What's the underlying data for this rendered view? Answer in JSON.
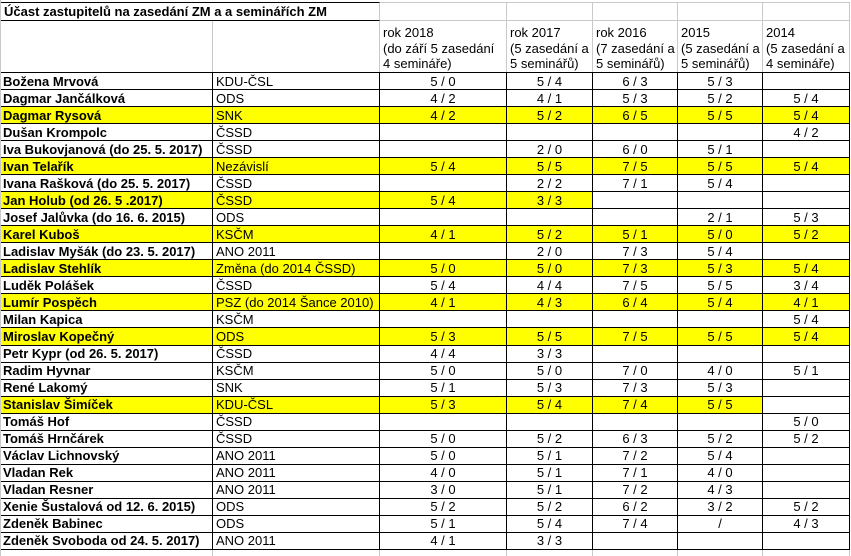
{
  "title": "Účast zastupitelů na zasedání ZM a a seminářích ZM",
  "columns": [
    {
      "label": "rok 2018\n(do září 5 zasedání\n4 semináře)"
    },
    {
      "label": "rok 2017\n(5 zasedání a\n5 seminářů)"
    },
    {
      "label": "rok 2016\n(7 zasedání a\n5 seminářů)"
    },
    {
      "label": "2015\n(5 zasedání a\n5 seminářů)"
    },
    {
      "label": "2014\n(5 zasedání a\n4 semináře)"
    }
  ],
  "rows": [
    {
      "name": "Božena Mrvová",
      "party": "KDU-ČSL",
      "values": [
        "5 / 0",
        "5 / 4",
        "6 / 3",
        "5 / 3",
        ""
      ],
      "highlight_cells": 0
    },
    {
      "name": "Dagmar Jančálková",
      "party": "ODS",
      "values": [
        "4 / 2",
        "4 / 1",
        "5 / 3",
        "5 / 2",
        "5 / 4"
      ],
      "highlight_cells": 0
    },
    {
      "name": "Dagmar Rysová",
      "party": "SNK",
      "values": [
        "4 / 2",
        "5 / 2",
        "6 / 5",
        "5 / 5",
        "5 / 4"
      ],
      "highlight_cells": 7
    },
    {
      "name": "Dušan Krompolc",
      "party": "ČSSD",
      "values": [
        "",
        "",
        "",
        "",
        "4 / 2"
      ],
      "highlight_cells": 0
    },
    {
      "name": "Iva Bukovjanová (do 25. 5. 2017)",
      "party": "ČSSD",
      "values": [
        "",
        "2 / 0",
        "6 / 0",
        "5 / 1",
        ""
      ],
      "highlight_cells": 0
    },
    {
      "name": "Ivan Telařík",
      "party": "Nezávislí",
      "values": [
        "5 / 4",
        "5 / 5",
        "7 / 5",
        "5 / 5",
        "5 / 4"
      ],
      "highlight_cells": 7
    },
    {
      "name": "Ivana Rašková (do 25. 5. 2017)",
      "party": "ČSSD",
      "values": [
        "",
        "2 / 2",
        "7 / 1",
        "5 / 4",
        ""
      ],
      "highlight_cells": 0
    },
    {
      "name": "Jan Holub (od 26. 5 .2017)",
      "party": "ČSSD",
      "values": [
        "5 / 4",
        "3 / 3",
        "",
        "",
        ""
      ],
      "highlight_cells": 4
    },
    {
      "name": "Josef Jalůvka (do 16. 6. 2015)",
      "party": "ODS",
      "values": [
        "",
        "",
        "",
        "2 / 1",
        "5 / 3"
      ],
      "highlight_cells": 0
    },
    {
      "name": "Karel Kuboš",
      "party": "KSČM",
      "values": [
        "4 / 1",
        "5 / 2",
        "5 / 1",
        "5 / 0",
        "5 / 2"
      ],
      "highlight_cells": 7
    },
    {
      "name": "Ladislav Myšák (do 23. 5. 2017)",
      "party": "ANO 2011",
      "values": [
        "",
        "2 / 0",
        "7 / 3",
        "5 / 4",
        ""
      ],
      "highlight_cells": 0
    },
    {
      "name": "Ladislav Stehlík",
      "party": "Změna (do 2014 ČSSD)",
      "values": [
        "5 / 0",
        "5 / 0",
        "7 / 3",
        "5 / 3",
        "5 / 4"
      ],
      "highlight_cells": 7
    },
    {
      "name": "Luděk Polášek",
      "party": "ČSSD",
      "values": [
        "5 / 4",
        "4 / 4",
        "7 / 5",
        "5 / 5",
        "3 / 4"
      ],
      "highlight_cells": 0
    },
    {
      "name": "Lumír Pospěch",
      "party": "PSZ (do 2014 Šance 2010)",
      "values": [
        "4 / 1",
        "4 / 3",
        "6 / 4",
        "5 / 4",
        "4 / 1"
      ],
      "highlight_cells": 7
    },
    {
      "name": "Milan Kapica",
      "party": "KSČM",
      "values": [
        "",
        "",
        "",
        "",
        "5 / 4"
      ],
      "highlight_cells": 0
    },
    {
      "name": "Miroslav Kopečný",
      "party": "ODS",
      "values": [
        "5 / 3",
        "5 / 5",
        "7 / 5",
        "5 / 5",
        "5 / 4"
      ],
      "highlight_cells": 7
    },
    {
      "name": "Petr Kypr (od 26. 5. 2017)",
      "party": "ČSSD",
      "values": [
        "4 / 4",
        "3 / 3",
        "",
        "",
        ""
      ],
      "highlight_cells": 0
    },
    {
      "name": "Radim Hyvnar",
      "party": "KSČM",
      "values": [
        "5 / 0",
        "5 / 0",
        "7 / 0",
        "4 / 0",
        "5 / 1"
      ],
      "highlight_cells": 0
    },
    {
      "name": "René Lakomý",
      "party": "SNK",
      "values": [
        "5 / 1",
        "5 / 3",
        "7 / 3",
        "5 / 3",
        ""
      ],
      "highlight_cells": 0
    },
    {
      "name": "Stanislav Šimíček",
      "party": "KDU-ČSL",
      "values": [
        "5 / 3",
        "5 / 4",
        "7 / 4",
        "5 / 5",
        ""
      ],
      "highlight_cells": 6
    },
    {
      "name": "Tomáš Hof",
      "party": "ČSSD",
      "values": [
        "",
        "",
        "",
        "",
        "5 / 0"
      ],
      "highlight_cells": 0
    },
    {
      "name": "Tomáš Hrnčárek",
      "party": "ČSSD",
      "values": [
        "5 / 0",
        "5 / 2",
        "6 / 3",
        "5 / 2",
        "5 / 2"
      ],
      "highlight_cells": 0
    },
    {
      "name": "Václav Lichnovský",
      "party": "ANO 2011",
      "values": [
        "5 / 0",
        "5 / 1",
        "7 / 2",
        "5 / 4",
        ""
      ],
      "highlight_cells": 0
    },
    {
      "name": "Vladan Rek",
      "party": "ANO 2011",
      "values": [
        "4 / 0",
        "5 / 1",
        "7 / 1",
        "4 / 0",
        ""
      ],
      "highlight_cells": 0
    },
    {
      "name": "Vladan Resner",
      "party": "ANO 2011",
      "values": [
        "3 / 0",
        "5 / 1",
        "7 / 2",
        "4 / 3",
        ""
      ],
      "highlight_cells": 0
    },
    {
      "name": "Xenie Šustalová od 12. 6. 2015)",
      "party": "ODS",
      "values": [
        "5 / 2",
        "5 / 2",
        "6 / 2",
        "3 / 2",
        "5 / 2"
      ],
      "highlight_cells": 0
    },
    {
      "name": "Zdeněk Babinec",
      "party": "ODS",
      "values": [
        "5 / 1",
        "5 / 4",
        "7 / 4",
        "/",
        "4 / 3"
      ],
      "highlight_cells": 0
    },
    {
      "name": "Zdeněk Svoboda od 24. 5. 2017)",
      "party": "ANO 2011",
      "values": [
        "4 / 1",
        "3 / 3",
        "",
        "",
        ""
      ],
      "highlight_cells": 0
    }
  ],
  "colors": {
    "highlight": "#ffff00",
    "grid_black": "#000000",
    "grid_gray": "#c9c9c9"
  }
}
